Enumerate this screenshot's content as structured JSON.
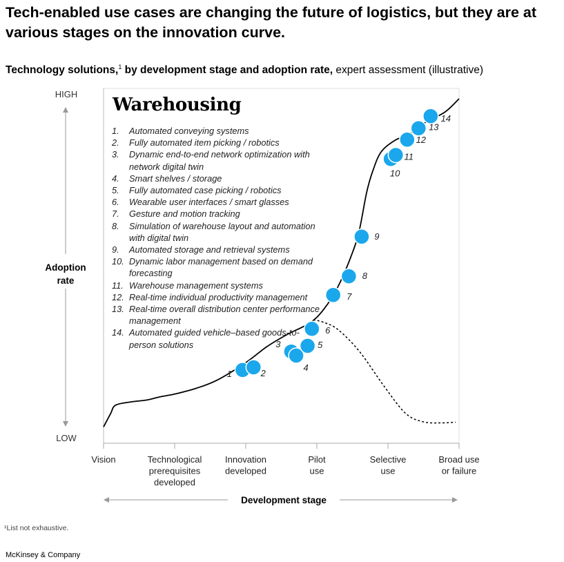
{
  "title": "Tech-enabled use cases are changing the future of logistics, but they are at various stages on the innovation curve.",
  "subtitle": {
    "bold": "Technology solutions,",
    "sup": "1",
    "bold2": " by development stage and adoption rate,",
    "light": " expert assessment (illustrative)"
  },
  "panel_title": "Warehousing",
  "legend": [
    {
      "num": "1.",
      "text": "Automated conveying systems"
    },
    {
      "num": "2.",
      "text": "Fully automated item picking / robotics"
    },
    {
      "num": "3.",
      "text": "Dynamic end-to-end network optimization with network digital twin"
    },
    {
      "num": "4.",
      "text": "Smart shelves / storage"
    },
    {
      "num": "5.",
      "text": "Fully automated case picking / robotics"
    },
    {
      "num": "6.",
      "text": "Wearable user interfaces / smart glasses"
    },
    {
      "num": "7.",
      "text": "Gesture and motion tracking"
    },
    {
      "num": "8.",
      "text": "Simulation of warehouse layout and automation with digital twin"
    },
    {
      "num": "9.",
      "text": "Automated storage and retrieval systems"
    },
    {
      "num": "10.",
      "text": "Dynamic labor management based on demand forecasting"
    },
    {
      "num": "11.",
      "text": "Warehouse management systems"
    },
    {
      "num": "12.",
      "text": "Real-time individual productivity management"
    },
    {
      "num": "13.",
      "text": "Real-time overall distribution center performance management"
    },
    {
      "num": "14.",
      "text": "Automated guided vehicle–based goods-to-person solutions"
    }
  ],
  "footnote": "¹List not exhaustive.",
  "brand": "McKinsey & Company",
  "colors": {
    "accent": "#1aa7ec",
    "curve": "#000000",
    "axis": "#999999"
  },
  "chart_data": {
    "type": "scatter",
    "title": "Warehousing",
    "xlabel": "Development stage",
    "ylabel": "Adoption rate",
    "x_categories": [
      "Vision",
      "Technological prerequisites developed",
      "Innovation developed",
      "Pilot use",
      "Selective use",
      "Broad use or failure"
    ],
    "x_tick_lines": [
      [
        "Vision"
      ],
      [
        "Technological",
        "prerequisites",
        "developed"
      ],
      [
        "Innovation",
        "developed"
      ],
      [
        "Pilot",
        "use"
      ],
      [
        "Selective",
        "use"
      ],
      [
        "Broad use",
        "or failure"
      ]
    ],
    "y_range_labels": [
      "LOW",
      "HIGH"
    ],
    "xlim": [
      0,
      5
    ],
    "ylim": [
      0,
      100
    ],
    "grid": false,
    "curve": [
      [
        0,
        2
      ],
      [
        0.1,
        6
      ],
      [
        0.17,
        8.5
      ],
      [
        0.4,
        9.5
      ],
      [
        0.6,
        10
      ],
      [
        0.8,
        11
      ],
      [
        1,
        11.8
      ],
      [
        1.3,
        13.5
      ],
      [
        1.6,
        16
      ],
      [
        2,
        21.2
      ],
      [
        2.3,
        26
      ],
      [
        2.6,
        29.8
      ],
      [
        2.9,
        33
      ],
      [
        3.1,
        37.2
      ],
      [
        3.3,
        44
      ],
      [
        3.5,
        54
      ],
      [
        3.6,
        61
      ],
      [
        3.7,
        72
      ],
      [
        3.78,
        78
      ],
      [
        3.9,
        84
      ],
      [
        4.1,
        87.6
      ],
      [
        4.3,
        89.4
      ],
      [
        4.5,
        92.6
      ],
      [
        4.8,
        96
      ],
      [
        5,
        100
      ]
    ],
    "failure_curve": [
      [
        2.95,
        34
      ],
      [
        3.1,
        33.2
      ],
      [
        3.3,
        31
      ],
      [
        3.6,
        24.5
      ],
      [
        3.95,
        14
      ],
      [
        4.25,
        6
      ],
      [
        4.5,
        3.5
      ],
      [
        4.75,
        3.2
      ],
      [
        4.95,
        3.4
      ]
    ],
    "series": [
      {
        "points": [
          {
            "label": "1",
            "x": 1.955,
            "y": 19
          },
          {
            "label": "2",
            "x": 2.11,
            "y": 19.8
          },
          {
            "label": "3",
            "x": 2.64,
            "y": 24.5
          },
          {
            "label": "4",
            "x": 2.71,
            "y": 23.3
          },
          {
            "label": "5",
            "x": 2.87,
            "y": 26.2
          },
          {
            "label": "6",
            "x": 2.93,
            "y": 31.3
          },
          {
            "label": "7",
            "x": 3.23,
            "y": 41.4
          },
          {
            "label": "8",
            "x": 3.45,
            "y": 47
          },
          {
            "label": "9",
            "x": 3.63,
            "y": 58.8
          },
          {
            "label": "10",
            "x": 4.04,
            "y": 82
          },
          {
            "label": "11",
            "x": 4.11,
            "y": 83.2
          },
          {
            "label": "12",
            "x": 4.27,
            "y": 87.8
          },
          {
            "label": "13",
            "x": 4.43,
            "y": 91.2
          },
          {
            "label": "14",
            "x": 4.6,
            "y": 94.8
          }
        ]
      }
    ]
  }
}
